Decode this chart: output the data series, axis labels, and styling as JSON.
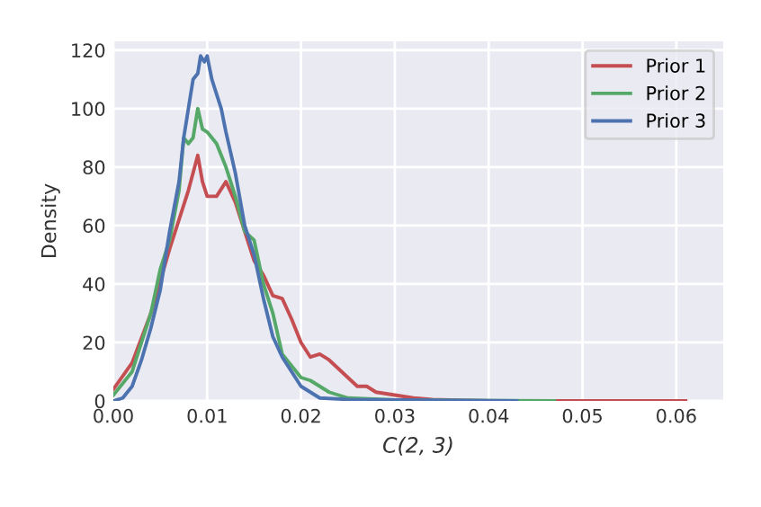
{
  "chart_data": {
    "type": "line",
    "xlabel": "C(2, 3)",
    "ylabel": "Density",
    "xlim": [
      0,
      0.065
    ],
    "ylim": [
      0,
      123
    ],
    "xticks": [
      {
        "value": 0,
        "label": "0.00"
      },
      0.01,
      0.02,
      0.03,
      0.04,
      0.05,
      0.06
    ],
    "yticks": [
      0,
      20,
      40,
      60,
      80,
      100,
      120
    ],
    "grid": true,
    "legend": "top right",
    "line_style": "solid",
    "marker": "none",
    "series": [
      {
        "name": "Prior 1",
        "color": "#c44e52",
        "x": [
          0,
          0.002,
          0.004,
          0.006,
          0.007,
          0.008,
          0.009,
          0.0095,
          0.01,
          0.011,
          0.012,
          0.013,
          0.014,
          0.015,
          0.016,
          0.017,
          0.018,
          0.019,
          0.02,
          0.021,
          0.022,
          0.023,
          0.024,
          0.025,
          0.026,
          0.027,
          0.028,
          0.03,
          0.032,
          0.034,
          0.04,
          0.061
        ],
        "values": [
          4,
          13,
          30,
          52,
          62,
          72,
          84,
          75,
          70,
          70,
          75,
          68,
          58,
          48,
          43,
          36,
          35,
          28,
          20,
          15,
          16,
          14,
          11,
          8,
          5,
          5,
          3,
          2,
          1,
          0.5,
          0,
          0
        ]
      },
      {
        "name": "Prior 2",
        "color": "#55a868",
        "x": [
          0,
          0.002,
          0.004,
          0.005,
          0.006,
          0.007,
          0.0075,
          0.008,
          0.0085,
          0.009,
          0.0095,
          0.01,
          0.011,
          0.012,
          0.013,
          0.014,
          0.015,
          0.016,
          0.017,
          0.018,
          0.019,
          0.02,
          0.021,
          0.022,
          0.023,
          0.025,
          0.03,
          0.047
        ],
        "values": [
          2,
          10,
          30,
          45,
          55,
          72,
          90,
          88,
          90,
          100,
          93,
          92,
          88,
          80,
          70,
          58,
          55,
          40,
          30,
          16,
          12,
          8,
          7,
          5,
          3,
          1,
          0.3,
          0
        ]
      },
      {
        "name": "Prior 3",
        "color": "#4c72b0",
        "x": [
          0,
          0.001,
          0.002,
          0.003,
          0.004,
          0.005,
          0.006,
          0.007,
          0.0075,
          0.008,
          0.0085,
          0.009,
          0.0093,
          0.0097,
          0.01,
          0.0105,
          0.011,
          0.0115,
          0.012,
          0.013,
          0.014,
          0.015,
          0.016,
          0.017,
          0.018,
          0.019,
          0.02,
          0.021,
          0.022,
          0.025,
          0.043
        ],
        "values": [
          0,
          1,
          5,
          14,
          25,
          38,
          58,
          75,
          90,
          100,
          110,
          112,
          118,
          116,
          118,
          110,
          105,
          100,
          92,
          78,
          60,
          50,
          35,
          22,
          15,
          10,
          5,
          3,
          1,
          0.5,
          0
        ]
      }
    ]
  }
}
